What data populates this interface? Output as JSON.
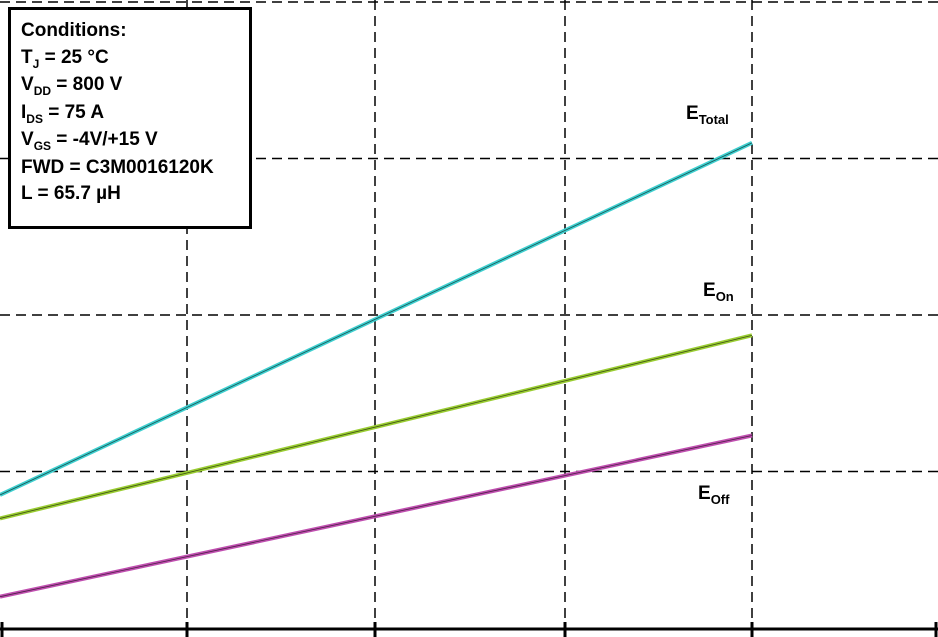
{
  "conditions": {
    "heading": "Conditions:",
    "items": [
      {
        "main": "T",
        "sub": "J",
        "rest": " = 25 °C"
      },
      {
        "main": "V",
        "sub": "DD",
        "rest": " = 800 V"
      },
      {
        "main": "I",
        "sub": "DS",
        "rest": " = 75 A"
      },
      {
        "main": "V",
        "sub": "GS",
        "rest": " = -4V/+15 V"
      },
      {
        "main": "FWD = C3M0016120K",
        "sub": "",
        "rest": ""
      },
      {
        "main": "L = 65.7 µH",
        "sub": "",
        "rest": ""
      }
    ]
  },
  "chart_data": {
    "type": "line",
    "grid": true,
    "xlim": [
      0,
      5
    ],
    "ylim": [
      0,
      4
    ],
    "x_tick_values": [
      1,
      2,
      3,
      4
    ],
    "y_grid_values": [
      1,
      2,
      3
    ],
    "series": [
      {
        "name": "E",
        "name_sub": "Total",
        "color": "#3ecfcf",
        "x": [
          0,
          4
        ],
        "y": [
          0.85,
          3.1
        ]
      },
      {
        "name": "E",
        "name_sub": "On",
        "color": "#9acd32",
        "x": [
          0,
          4
        ],
        "y": [
          0.7,
          1.87
        ]
      },
      {
        "name": "E",
        "name_sub": "Off",
        "color": "#c04fb0",
        "x": [
          0,
          4
        ],
        "y": [
          0.2,
          1.23
        ]
      }
    ]
  }
}
